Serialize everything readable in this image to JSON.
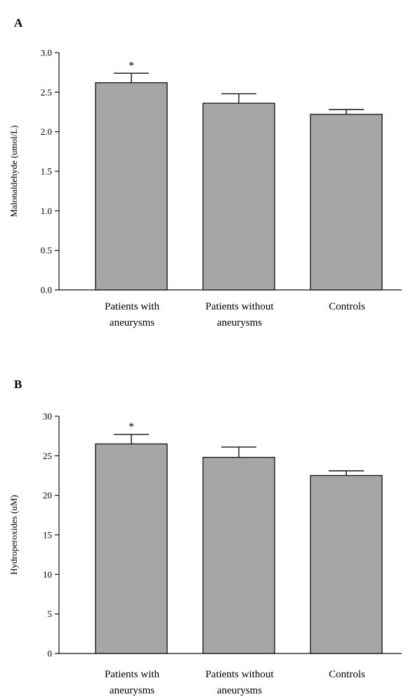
{
  "chart_data": [
    {
      "type": "bar",
      "panel_label": "A",
      "ylabel": "Malonaldehyde (umol/L)",
      "xlabel": "",
      "title": "",
      "ylim": [
        0,
        3.0
      ],
      "yticks": [
        0.0,
        0.5,
        1.0,
        1.5,
        2.0,
        2.5,
        3.0
      ],
      "ytick_labels": [
        "0.0",
        "0.5",
        "1.0",
        "1.5",
        "2.0",
        "2.5",
        "3.0"
      ],
      "categories": [
        {
          "line1": "Patients with",
          "line2": "aneurysms"
        },
        {
          "line1": "Patients without",
          "line2": "aneurysms"
        },
        {
          "line1": "Controls",
          "line2": ""
        }
      ],
      "values": [
        2.62,
        2.36,
        2.22
      ],
      "errors": [
        0.12,
        0.12,
        0.06
      ],
      "annotations": [
        "*",
        "",
        ""
      ],
      "bar_color": "#a6a6a6",
      "grid": false
    },
    {
      "type": "bar",
      "panel_label": "B",
      "ylabel": "Hydroperoxides (uM)",
      "xlabel": "",
      "title": "",
      "ylim": [
        0,
        30
      ],
      "yticks": [
        0,
        5,
        10,
        15,
        20,
        25,
        30
      ],
      "ytick_labels": [
        "0",
        "5",
        "10",
        "15",
        "20",
        "25",
        "30"
      ],
      "categories": [
        {
          "line1": "Patients with",
          "line2": "aneurysms"
        },
        {
          "line1": "Patients without",
          "line2": "aneurysms"
        },
        {
          "line1": "Controls",
          "line2": ""
        }
      ],
      "values": [
        26.5,
        24.8,
        22.5
      ],
      "errors": [
        1.2,
        1.3,
        0.6
      ],
      "annotations": [
        "*",
        "",
        ""
      ],
      "bar_color": "#a6a6a6",
      "grid": false
    }
  ]
}
